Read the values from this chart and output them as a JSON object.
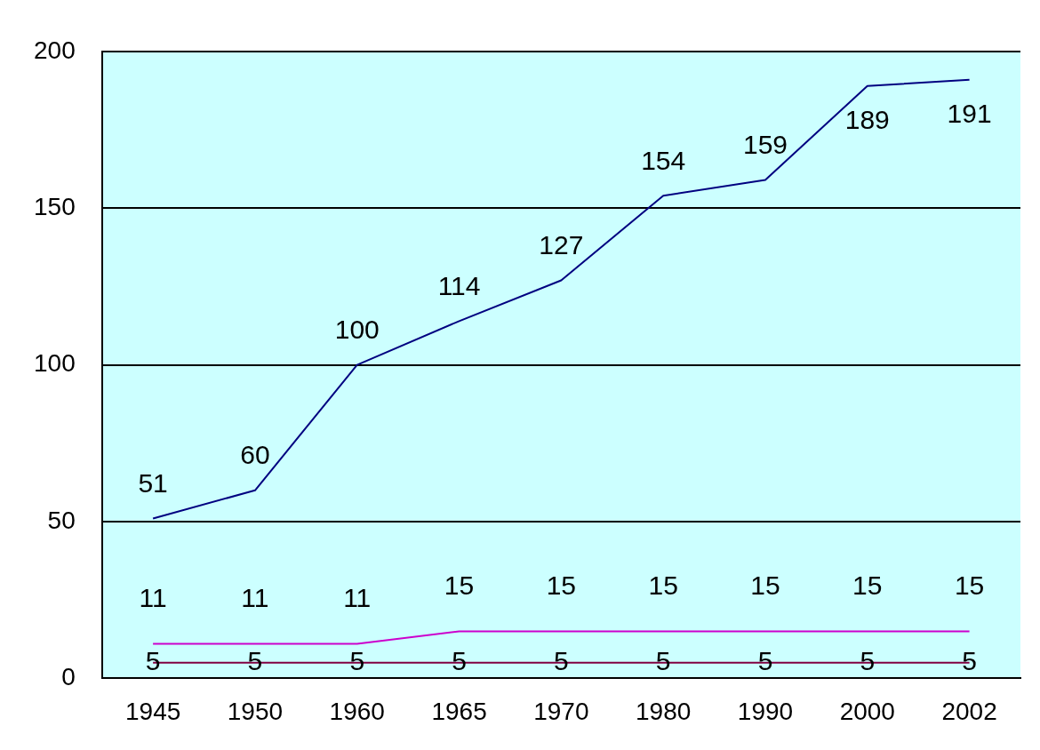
{
  "chart_data": {
    "type": "line",
    "categories": [
      "1945",
      "1950",
      "1960",
      "1965",
      "1970",
      "1980",
      "1990",
      "2000",
      "2002"
    ],
    "series": [
      {
        "color": "#000080",
        "values": [
          51,
          60,
          100,
          114,
          127,
          154,
          159,
          189,
          191
        ]
      },
      {
        "color": "#cc00cc",
        "values": [
          11,
          11,
          11,
          15,
          15,
          15,
          15,
          15,
          15
        ]
      },
      {
        "color": "#800040",
        "values": [
          5,
          5,
          5,
          5,
          5,
          5,
          5,
          5,
          5
        ]
      }
    ],
    "ylim": [
      0,
      200
    ],
    "yticks": [
      0,
      50,
      100,
      150,
      200
    ],
    "grid": "y",
    "legend": false,
    "marker": "none",
    "line_style": "solid",
    "data_labels": true
  }
}
